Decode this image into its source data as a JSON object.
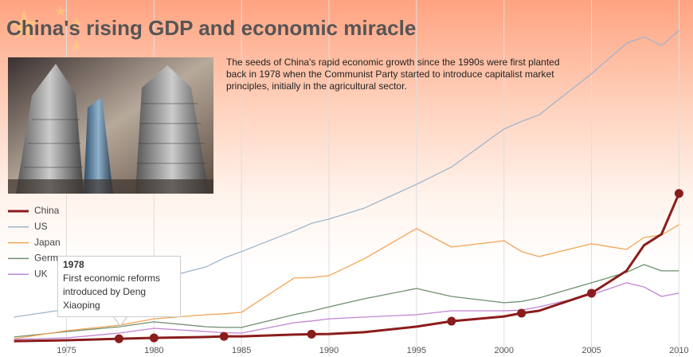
{
  "chart_data": {
    "type": "line",
    "title": "China's rising GDP and economic miracle",
    "description": "The seeds of China's rapid economic growth since the 1990s were first planted back in 1978 when the Communist Party started to introduce capitalist market principles, initially in the agricultural sector.",
    "x": [
      1972,
      1975,
      1978,
      1980,
      1983,
      1984,
      1985,
      1988,
      1989,
      1990,
      1992,
      1995,
      1997,
      2000,
      2001,
      2002,
      2005,
      2007,
      2008,
      2009,
      2010
    ],
    "xlim": [
      1971.2,
      2010.8
    ],
    "xticks": [
      1975,
      1980,
      1985,
      1990,
      1995,
      2000,
      2005,
      2010
    ],
    "ylim": [
      0,
      15.8
    ],
    "grid": true,
    "series": [
      {
        "name": "China",
        "color": "#8b1c1c",
        "values": [
          0.07,
          0.11,
          0.18,
          0.22,
          0.26,
          0.29,
          0.29,
          0.37,
          0.39,
          0.4,
          0.48,
          0.74,
          0.99,
          1.21,
          1.36,
          1.47,
          2.28,
          3.31,
          4.49,
          5.0,
          6.88
        ]
      },
      {
        "name": "US",
        "color": "#9fb4cc",
        "values": [
          1.18,
          1.54,
          1.9,
          2.87,
          3.5,
          3.9,
          4.2,
          5.15,
          5.5,
          5.7,
          6.2,
          7.3,
          8.1,
          9.85,
          10.2,
          10.5,
          12.4,
          13.8,
          14.1,
          13.7,
          14.4
        ]
      },
      {
        "name": "Japan",
        "color": "#f2a455",
        "values": [
          0.18,
          0.55,
          0.8,
          1.1,
          1.29,
          1.33,
          1.4,
          2.98,
          3.0,
          3.09,
          3.86,
          5.26,
          4.41,
          4.7,
          4.2,
          3.97,
          4.56,
          4.3,
          4.85,
          4.96,
          5.44
        ]
      },
      {
        "name": "Germany",
        "color": "#6f8f6f",
        "values": [
          0.26,
          0.51,
          0.73,
          0.96,
          0.73,
          0.7,
          0.7,
          1.29,
          1.45,
          1.65,
          2.02,
          2.5,
          2.13,
          1.84,
          1.9,
          2.06,
          2.76,
          3.24,
          3.6,
          3.31,
          3.31
        ]
      },
      {
        "name": "UK",
        "color": "#c184d4",
        "values": [
          0.15,
          0.22,
          0.44,
          0.66,
          0.51,
          0.46,
          0.44,
          0.92,
          1.0,
          1.1,
          1.18,
          1.29,
          1.47,
          1.47,
          1.5,
          1.65,
          2.21,
          2.76,
          2.57,
          2.13,
          2.28
        ]
      }
    ],
    "milestones": [
      1978,
      1980,
      1984,
      1989,
      1997,
      2001,
      2005,
      2010
    ],
    "tooltip": {
      "title": "1978",
      "text": "First economic reforms introduced by Deng Xiaoping"
    }
  }
}
